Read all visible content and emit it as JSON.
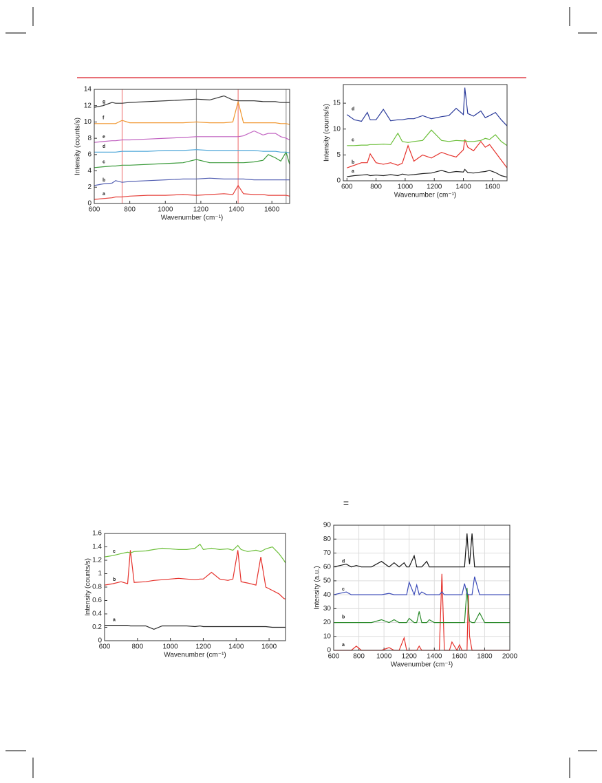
{
  "fragment": "=",
  "chart_data": [
    {
      "type": "line",
      "xlabel": "Wavenumber (cm⁻¹)",
      "ylabel": "Intensity (counts/s)",
      "x": [
        600,
        650,
        700,
        720,
        757,
        800,
        900,
        1000,
        1100,
        1175,
        1250,
        1330,
        1380,
        1410,
        1440,
        1500,
        1550,
        1580,
        1620,
        1650,
        1680,
        1700
      ],
      "xlim": [
        600,
        1700
      ],
      "xticks": [
        600,
        800,
        1000,
        1200,
        1400,
        1600
      ],
      "ylim": [
        0,
        14
      ],
      "yticks": [
        0,
        2,
        4,
        6,
        8,
        10,
        12,
        14
      ],
      "grid": false,
      "vlines": [
        {
          "x": 757,
          "color": "#f08080"
        },
        {
          "x": 1175,
          "color": "#999999"
        },
        {
          "x": 1410,
          "color": "#f08080"
        },
        {
          "x": 1680,
          "color": "#999999"
        }
      ],
      "series": [
        {
          "name": "a",
          "color": "#e5403a",
          "values": [
            0.5,
            0.6,
            0.7,
            0.8,
            0.8,
            0.9,
            1.0,
            1.0,
            1.1,
            1.0,
            1.1,
            1.2,
            1.1,
            2.2,
            1.2,
            1.1,
            1.1,
            1.0,
            1.0,
            1.0,
            1.0,
            0.9
          ]
        },
        {
          "name": "b",
          "color": "#5561b3",
          "values": [
            2.2,
            2.4,
            2.5,
            2.8,
            2.6,
            2.7,
            2.8,
            2.9,
            3.0,
            3.0,
            3.1,
            3.0,
            3.0,
            3.0,
            3.0,
            2.9,
            2.9,
            2.9,
            2.9,
            2.9,
            2.9,
            2.9
          ]
        },
        {
          "name": "c",
          "color": "#3a9a3a",
          "values": [
            4.4,
            4.5,
            4.6,
            4.6,
            4.7,
            4.7,
            4.8,
            4.9,
            5.0,
            5.4,
            5.0,
            5.0,
            5.0,
            5.0,
            5.0,
            5.1,
            5.3,
            6.0,
            5.6,
            5.2,
            6.3,
            4.8
          ]
        },
        {
          "name": "d",
          "color": "#4da6d8",
          "values": [
            6.3,
            6.3,
            6.3,
            6.3,
            6.4,
            6.4,
            6.4,
            6.5,
            6.5,
            6.6,
            6.5,
            6.5,
            6.5,
            6.5,
            6.5,
            6.5,
            6.4,
            6.4,
            6.4,
            6.3,
            6.3,
            6.2
          ]
        },
        {
          "name": "e",
          "color": "#c060c0",
          "values": [
            7.5,
            7.6,
            7.7,
            7.7,
            7.8,
            7.8,
            7.9,
            8.0,
            8.1,
            8.2,
            8.2,
            8.2,
            8.2,
            8.2,
            8.3,
            8.9,
            8.4,
            8.6,
            8.6,
            8.2,
            8.0,
            7.8
          ]
        },
        {
          "name": "f",
          "color": "#f0962e",
          "values": [
            9.8,
            9.8,
            9.8,
            9.8,
            10.2,
            9.9,
            9.9,
            9.9,
            9.9,
            10.0,
            9.9,
            9.9,
            10.0,
            12.5,
            9.9,
            9.9,
            9.9,
            9.9,
            9.9,
            9.8,
            9.8,
            9.7
          ]
        },
        {
          "name": "g",
          "color": "#333333",
          "values": [
            11.8,
            12.0,
            12.4,
            12.3,
            12.3,
            12.4,
            12.5,
            12.6,
            12.7,
            12.8,
            12.7,
            13.2,
            12.7,
            12.6,
            12.6,
            12.6,
            12.5,
            12.5,
            12.5,
            12.4,
            12.4,
            12.4
          ]
        }
      ]
    },
    {
      "type": "line",
      "xlabel": "Wavenumber (cm⁻¹)",
      "ylabel": "Intensity (counts/s)",
      "x": [
        600,
        650,
        700,
        740,
        760,
        800,
        850,
        900,
        950,
        980,
        1020,
        1060,
        1120,
        1180,
        1250,
        1300,
        1350,
        1400,
        1410,
        1430,
        1470,
        1520,
        1550,
        1580,
        1620,
        1660,
        1700
      ],
      "xlim": [
        575,
        1700
      ],
      "xticks": [
        600,
        800,
        1000,
        1200,
        1400,
        1600
      ],
      "ylim": [
        0,
        18.6
      ],
      "yticks": [
        0,
        5,
        10,
        15
      ],
      "grid": false,
      "series": [
        {
          "name": "a",
          "color": "#222222",
          "values": [
            0.8,
            1.0,
            1.1,
            1.2,
            1.0,
            1.1,
            1.0,
            1.2,
            1.0,
            1.3,
            1.1,
            1.2,
            1.4,
            1.5,
            2.0,
            1.6,
            1.8,
            1.7,
            2.2,
            1.6,
            1.5,
            1.7,
            1.8,
            2.0,
            1.6,
            1.0,
            0.7
          ]
        },
        {
          "name": "b",
          "color": "#e5302a",
          "values": [
            2.5,
            3.0,
            3.5,
            3.5,
            5.2,
            3.5,
            3.2,
            3.5,
            3.0,
            3.4,
            6.8,
            3.8,
            5.0,
            4.4,
            5.5,
            5.0,
            4.6,
            6.0,
            8.0,
            6.5,
            5.8,
            7.6,
            6.5,
            7.0,
            5.5,
            4.0,
            2.5
          ]
        },
        {
          "name": "c",
          "color": "#6cbf3a",
          "values": [
            6.8,
            6.8,
            6.9,
            6.9,
            7.0,
            7.0,
            7.1,
            7.0,
            9.2,
            7.6,
            7.4,
            7.6,
            7.8,
            9.8,
            7.8,
            7.6,
            7.8,
            7.7,
            7.8,
            7.6,
            7.6,
            7.8,
            8.2,
            8.0,
            8.9,
            7.6,
            6.8
          ]
        },
        {
          "name": "d",
          "color": "#2a3a9a",
          "values": [
            12.8,
            11.8,
            11.5,
            13.2,
            11.8,
            11.8,
            13.8,
            11.6,
            11.8,
            11.8,
            12.0,
            12.0,
            12.6,
            12.0,
            12.4,
            12.6,
            14.0,
            12.8,
            18.0,
            13.0,
            12.5,
            13.5,
            12.2,
            12.6,
            13.2,
            11.8,
            10.6
          ]
        }
      ]
    },
    {
      "type": "line",
      "xlabel": "Wavenumber (cm⁻¹)",
      "ylabel": "Intensity (counts/s)",
      "x": [
        600,
        650,
        700,
        740,
        757,
        780,
        850,
        900,
        950,
        1000,
        1050,
        1100,
        1150,
        1180,
        1200,
        1250,
        1300,
        1350,
        1380,
        1410,
        1430,
        1470,
        1520,
        1550,
        1580,
        1620,
        1660,
        1690,
        1700
      ],
      "xlim": [
        600,
        1700
      ],
      "xticks": [
        600,
        800,
        1000,
        1200,
        1400,
        1600
      ],
      "ylim": [
        0,
        1.6
      ],
      "yticks": [
        0,
        0.2,
        0.4,
        0.6,
        0.8,
        1,
        1.2,
        1.4,
        1.6
      ],
      "grid": false,
      "series": [
        {
          "name": "a",
          "color": "#222222",
          "values": [
            0.23,
            0.23,
            0.23,
            0.23,
            0.22,
            0.22,
            0.22,
            0.17,
            0.22,
            0.22,
            0.22,
            0.22,
            0.21,
            0.22,
            0.21,
            0.21,
            0.21,
            0.21,
            0.21,
            0.21,
            0.21,
            0.21,
            0.21,
            0.21,
            0.21,
            0.2,
            0.2,
            0.2,
            0.2
          ]
        },
        {
          "name": "b",
          "color": "#e5302a",
          "values": [
            0.83,
            0.85,
            0.88,
            0.85,
            1.35,
            0.87,
            0.88,
            0.9,
            0.91,
            0.92,
            0.93,
            0.92,
            0.91,
            0.92,
            0.92,
            1.02,
            0.92,
            0.9,
            0.92,
            1.35,
            0.88,
            0.86,
            0.83,
            1.25,
            0.8,
            0.75,
            0.7,
            0.63,
            0.62
          ]
        },
        {
          "name": "c",
          "color": "#6cbf3a",
          "values": [
            1.25,
            1.27,
            1.3,
            1.32,
            1.31,
            1.33,
            1.34,
            1.36,
            1.38,
            1.37,
            1.36,
            1.36,
            1.38,
            1.44,
            1.36,
            1.38,
            1.36,
            1.37,
            1.35,
            1.42,
            1.36,
            1.33,
            1.35,
            1.33,
            1.37,
            1.4,
            1.3,
            1.2,
            1.16
          ]
        }
      ]
    },
    {
      "type": "line",
      "xlabel": "Wavenumber (cm⁻¹)",
      "ylabel": "Intensity (a.u.)",
      "x": [
        600,
        700,
        740,
        780,
        820,
        900,
        980,
        1040,
        1080,
        1120,
        1160,
        1180,
        1200,
        1240,
        1260,
        1280,
        1300,
        1340,
        1360,
        1400,
        1440,
        1460,
        1480,
        1520,
        1540,
        1580,
        1600,
        1620,
        1640,
        1660,
        1670,
        1680,
        1700,
        1720,
        1760,
        1800,
        1900,
        2000
      ],
      "xlim": [
        600,
        2000
      ],
      "xticks": [
        600,
        800,
        1000,
        1200,
        1400,
        1600,
        1800,
        2000
      ],
      "ylim": [
        0,
        90
      ],
      "yticks": [
        0,
        10,
        20,
        30,
        40,
        50,
        60,
        70,
        80,
        90
      ],
      "grid": true,
      "series": [
        {
          "name": "a",
          "color": "#e5302a",
          "values": [
            0,
            0,
            0,
            3,
            0,
            0,
            0,
            2,
            0,
            0,
            9,
            0,
            0,
            0,
            0,
            3,
            0,
            0,
            0,
            0,
            0,
            55,
            0,
            0,
            6,
            0,
            4,
            0,
            0,
            0,
            40,
            10,
            0,
            0,
            0,
            0,
            0,
            0
          ]
        },
        {
          "name": "b",
          "color": "#2a8a2a",
          "values": [
            20,
            20,
            20,
            20,
            20,
            20,
            22,
            20,
            22,
            20,
            20,
            20,
            23,
            20,
            20,
            28,
            20,
            20,
            22,
            20,
            20,
            20,
            20,
            20,
            20,
            20,
            20,
            20,
            20,
            45,
            30,
            21,
            20,
            20,
            27,
            20,
            20,
            20
          ]
        },
        {
          "name": "c",
          "color": "#3a4ab8",
          "values": [
            40,
            42,
            40,
            40,
            40,
            40,
            40,
            41,
            40,
            40,
            40,
            40,
            49,
            40,
            47,
            40,
            42,
            40,
            40,
            40,
            40,
            42,
            40,
            40,
            40,
            40,
            40,
            40,
            48,
            41,
            40,
            40,
            40,
            53,
            40,
            40,
            40,
            40
          ]
        },
        {
          "name": "d",
          "color": "#111111",
          "values": [
            60,
            62,
            60,
            61,
            60,
            60,
            64,
            60,
            63,
            60,
            63,
            60,
            60,
            68,
            60,
            60,
            60,
            64,
            60,
            60,
            60,
            60,
            60,
            60,
            60,
            60,
            60,
            60,
            60,
            84,
            70,
            62,
            84,
            60,
            60,
            60,
            60,
            60
          ]
        }
      ]
    }
  ]
}
